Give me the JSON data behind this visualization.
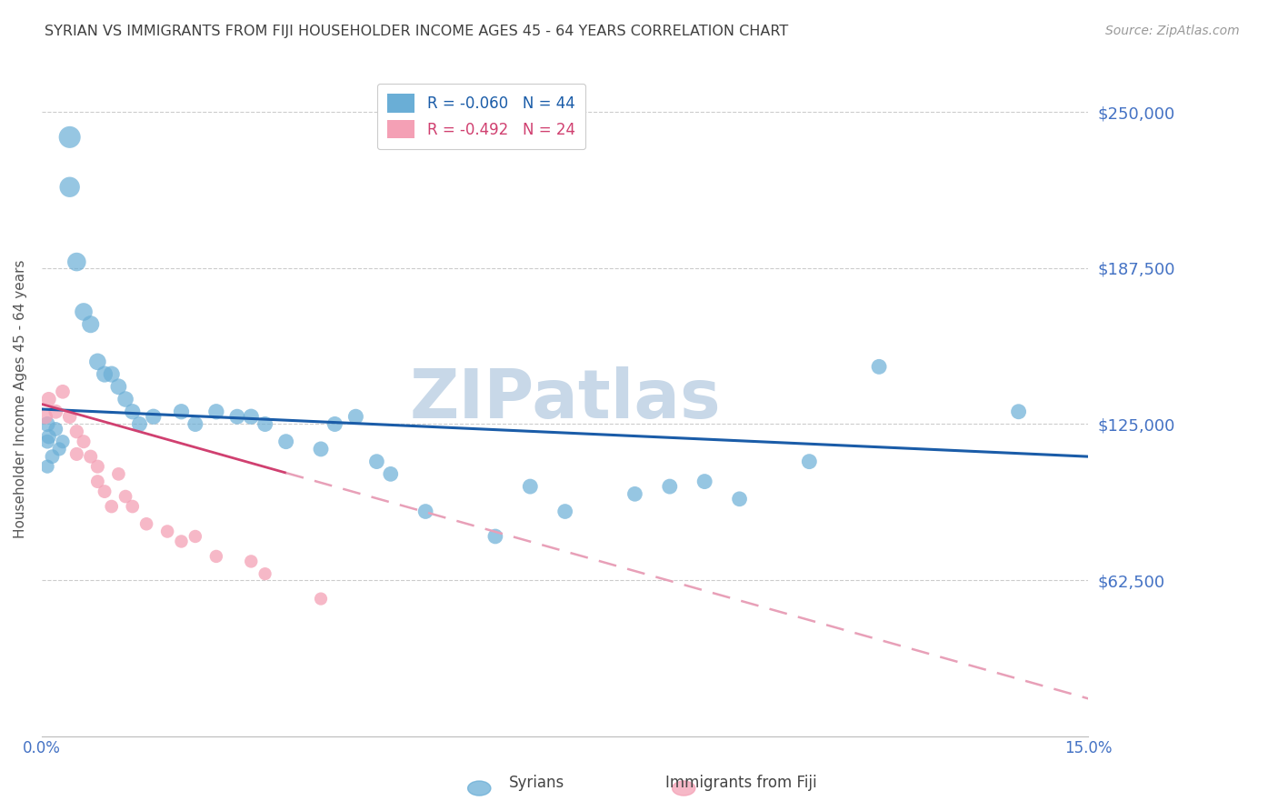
{
  "title": "SYRIAN VS IMMIGRANTS FROM FIJI HOUSEHOLDER INCOME AGES 45 - 64 YEARS CORRELATION CHART",
  "source": "Source: ZipAtlas.com",
  "ylabel": "Householder Income Ages 45 - 64 years",
  "yticks": [
    0,
    62500,
    125000,
    187500,
    250000
  ],
  "ytick_labels": [
    "",
    "$62,500",
    "$125,000",
    "$187,500",
    "$250,000"
  ],
  "xmin": 0.0,
  "xmax": 0.15,
  "ymin": 0,
  "ymax": 270000,
  "watermark": "ZIPatlas",
  "syrians_x": [
    0.0008,
    0.0008,
    0.0008,
    0.001,
    0.0015,
    0.002,
    0.0025,
    0.003,
    0.004,
    0.004,
    0.005,
    0.006,
    0.007,
    0.008,
    0.009,
    0.01,
    0.011,
    0.012,
    0.013,
    0.014,
    0.016,
    0.02,
    0.022,
    0.025,
    0.028,
    0.03,
    0.032,
    0.035,
    0.04,
    0.042,
    0.045,
    0.048,
    0.05,
    0.055,
    0.065,
    0.07,
    0.075,
    0.085,
    0.09,
    0.095,
    0.1,
    0.11,
    0.12,
    0.14
  ],
  "syrians_y": [
    125000,
    118000,
    108000,
    120000,
    112000,
    123000,
    115000,
    118000,
    240000,
    220000,
    190000,
    170000,
    165000,
    150000,
    145000,
    145000,
    140000,
    135000,
    130000,
    125000,
    128000,
    130000,
    125000,
    130000,
    128000,
    128000,
    125000,
    118000,
    115000,
    125000,
    128000,
    110000,
    105000,
    90000,
    80000,
    100000,
    90000,
    97000,
    100000,
    102000,
    95000,
    110000,
    148000,
    130000
  ],
  "syrians_sizes": [
    150,
    130,
    120,
    140,
    130,
    130,
    120,
    120,
    300,
    260,
    220,
    200,
    190,
    180,
    170,
    170,
    165,
    160,
    155,
    150,
    155,
    155,
    150,
    155,
    150,
    155,
    150,
    148,
    148,
    150,
    150,
    145,
    145,
    145,
    145,
    148,
    145,
    145,
    148,
    148,
    145,
    148,
    148,
    148
  ],
  "fiji_x": [
    0.0005,
    0.001,
    0.002,
    0.003,
    0.004,
    0.005,
    0.005,
    0.006,
    0.007,
    0.008,
    0.008,
    0.009,
    0.01,
    0.011,
    0.012,
    0.013,
    0.015,
    0.018,
    0.02,
    0.022,
    0.025,
    0.03,
    0.032,
    0.04
  ],
  "fiji_y": [
    128000,
    135000,
    130000,
    138000,
    128000,
    122000,
    113000,
    118000,
    112000,
    108000,
    102000,
    98000,
    92000,
    105000,
    96000,
    92000,
    85000,
    82000,
    78000,
    80000,
    72000,
    70000,
    65000,
    55000
  ],
  "fiji_sizes": [
    140,
    135,
    130,
    128,
    125,
    122,
    118,
    118,
    118,
    118,
    115,
    115,
    112,
    112,
    112,
    112,
    110,
    110,
    108,
    108,
    108,
    108,
    105,
    105
  ],
  "syrian_line_x": [
    0.0,
    0.15
  ],
  "syrian_line_y": [
    131000,
    112000
  ],
  "fiji_line_x": [
    0.0,
    0.15
  ],
  "fiji_line_y": [
    133000,
    15000
  ],
  "blue_color": "#6aaed6",
  "pink_color": "#f4a0b5",
  "blue_line_color": "#1a5ca8",
  "pink_line_color": "#d04070",
  "pink_dashed_color": "#e8a0b8",
  "axis_label_color": "#4472c4",
  "title_color": "#404040",
  "grid_color": "#cccccc",
  "watermark_color": "#c8d8e8"
}
